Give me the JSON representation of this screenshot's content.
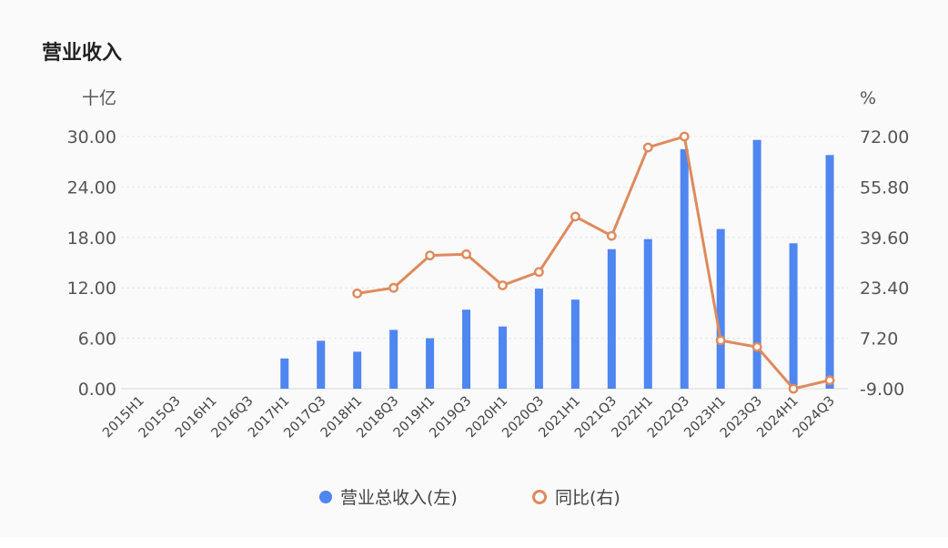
{
  "chart_data": {
    "type": "bar+line",
    "title": "营业收入",
    "left_unit": "十亿",
    "right_unit": "%",
    "categories": [
      "2015H1",
      "2015Q3",
      "2016H1",
      "2016Q3",
      "2017H1",
      "2017Q3",
      "2018H1",
      "2018Q3",
      "2019H1",
      "2019Q3",
      "2020H1",
      "2020Q3",
      "2021H1",
      "2021Q3",
      "2022H1",
      "2022Q3",
      "2023H1",
      "2023Q3",
      "2024H1",
      "2024Q3"
    ],
    "left_axis": {
      "ylim": [
        0,
        30
      ],
      "ticks": [
        0,
        6,
        12,
        18,
        24,
        30
      ],
      "tick_labels": [
        "0.00",
        "6.00",
        "12.00",
        "18.00",
        "24.00",
        "30.00"
      ]
    },
    "right_axis": {
      "ylim": [
        -9,
        72
      ],
      "ticks": [
        -9,
        7.2,
        23.4,
        39.6,
        55.8,
        72
      ],
      "tick_labels": [
        "-9.00",
        "7.20",
        "23.40",
        "39.60",
        "55.80",
        "72.00"
      ]
    },
    "series": [
      {
        "name": "营业总收入(左)",
        "kind": "bar",
        "axis": "left",
        "color": "#4f86f0",
        "values": [
          null,
          null,
          null,
          null,
          3.6,
          5.7,
          4.4,
          7.0,
          6.0,
          9.4,
          7.4,
          11.9,
          10.6,
          16.6,
          17.8,
          28.5,
          19.0,
          29.6,
          17.3,
          27.8
        ]
      },
      {
        "name": "同比(右)",
        "kind": "line",
        "axis": "right",
        "color": "#de8a5d",
        "values": [
          null,
          null,
          null,
          null,
          null,
          null,
          21.6,
          23.4,
          33.8,
          34.2,
          24.2,
          28.5,
          46.3,
          40.1,
          68.5,
          72.0,
          6.5,
          4.4,
          -9.0,
          -6.3
        ]
      }
    ],
    "grid": "horizontal-dashed",
    "legend": "bottom-center"
  }
}
